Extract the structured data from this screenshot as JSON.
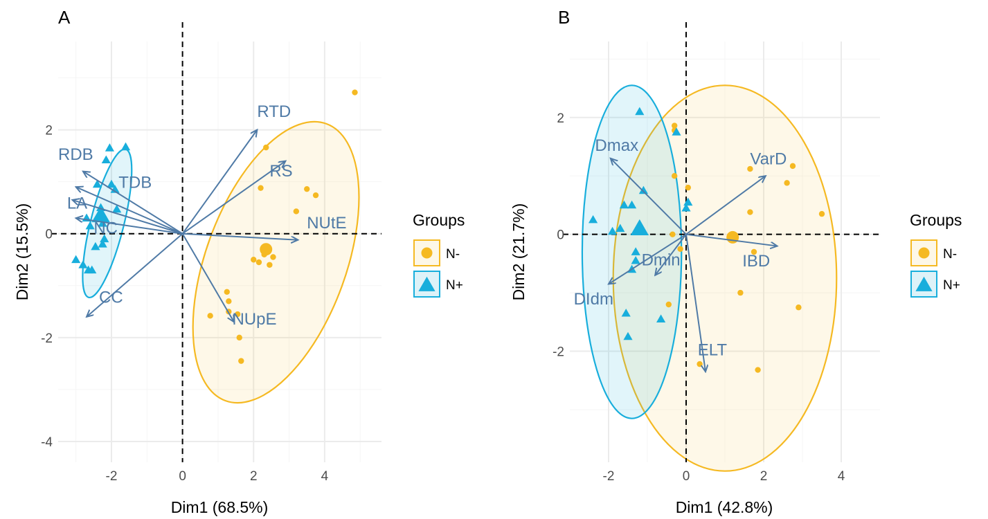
{
  "colors": {
    "n_minus": "#F5B922",
    "n_minus_fill": "#FDF7E7",
    "n_plus": "#18AEDC",
    "n_plus_fill": "#DDF2F8",
    "arrow": "#4F7AA6",
    "grid_major": "#EBEBEB",
    "grid_minor": "#F5F5F5"
  },
  "chart_data": [
    {
      "type": "scatter",
      "panel_label": "A",
      "xlabel": "Dim1 (68.5%)",
      "ylabel": "Dim2 (15.5%)",
      "xlim": [
        -3.5,
        5.6
      ],
      "ylim": [
        -4.4,
        3.7
      ],
      "xticks": [
        -2,
        0,
        2,
        4
      ],
      "yticks": [
        -4,
        -2,
        0,
        2
      ],
      "grid": true,
      "legend": {
        "title": "Groups",
        "position": "right",
        "entries": [
          "N-",
          "N+"
        ]
      },
      "series": [
        {
          "name": "N-",
          "marker": "circle",
          "points": [
            [
              4.85,
              2.72
            ],
            [
              2.35,
              1.66
            ],
            [
              2.2,
              0.88
            ],
            [
              3.5,
              0.86
            ],
            [
              3.75,
              0.74
            ],
            [
              3.2,
              0.43
            ],
            [
              2.0,
              -0.5
            ],
            [
              2.15,
              -0.55
            ],
            [
              2.3,
              -0.4
            ],
            [
              2.45,
              -0.6
            ],
            [
              2.55,
              -0.45
            ],
            [
              1.25,
              -1.12
            ],
            [
              1.3,
              -1.3
            ],
            [
              1.3,
              -1.5
            ],
            [
              0.78,
              -1.58
            ],
            [
              1.55,
              -1.55
            ],
            [
              1.6,
              -2.0
            ],
            [
              1.65,
              -2.45
            ],
            [
              2.35,
              -0.33
            ]
          ],
          "centroid": [
            2.35,
            -0.3
          ],
          "ellipse": {
            "cx": 2.63,
            "cy": -0.55,
            "rx": 4.15,
            "ry": 1.35,
            "angle_deg": 70
          }
        },
        {
          "name": "N+",
          "marker": "triangle",
          "points": [
            [
              -2.05,
              1.65
            ],
            [
              -1.6,
              1.67
            ],
            [
              -2.15,
              1.42
            ],
            [
              -2.0,
              0.95
            ],
            [
              -2.4,
              0.95
            ],
            [
              -1.9,
              0.85
            ],
            [
              -1.85,
              0.47
            ],
            [
              -2.3,
              0.5
            ],
            [
              -2.25,
              0.2
            ],
            [
              -2.6,
              0.15
            ],
            [
              -2.7,
              0.3
            ],
            [
              -2.2,
              -0.1
            ],
            [
              -2.45,
              -0.25
            ],
            [
              -2.25,
              -0.2
            ],
            [
              -3.0,
              -0.5
            ],
            [
              -2.8,
              -0.6
            ],
            [
              -2.65,
              -0.7
            ],
            [
              -2.55,
              -0.7
            ]
          ],
          "centroid": [
            -2.3,
            0.35
          ],
          "ellipse": {
            "cx": -2.12,
            "cy": 0.2,
            "rx": 2.15,
            "ry": 0.32,
            "angle_deg": 76
          }
        }
      ],
      "variables": [
        {
          "name": "RTD",
          "x": 2.1,
          "y": 2.0,
          "label_x": 2.1,
          "label_y": 2.25
        },
        {
          "name": "RS",
          "x": 2.9,
          "y": 1.4,
          "label_x": 2.45,
          "label_y": 1.1
        },
        {
          "name": "NUtE",
          "x": 3.25,
          "y": -0.12,
          "label_x": 3.5,
          "label_y": 0.1
        },
        {
          "name": "NUpE",
          "x": 1.45,
          "y": -1.7,
          "label_x": 1.4,
          "label_y": -1.75
        },
        {
          "name": "CC",
          "x": -2.7,
          "y": -1.6,
          "label_x": -2.35,
          "label_y": -1.33
        },
        {
          "name": "NC",
          "x": -3.0,
          "y": 0.3,
          "label_x": -2.5,
          "label_y": 0.0
        },
        {
          "name": "LA",
          "x": -3.1,
          "y": 0.65,
          "label_x": -3.25,
          "label_y": 0.48
        },
        {
          "name": "TDB",
          "x": -3.0,
          "y": 0.9,
          "label_x": -1.8,
          "label_y": 0.88
        },
        {
          "name": "RDB",
          "x": -2.8,
          "y": 1.2,
          "label_x": -3.5,
          "label_y": 1.42
        }
      ]
    },
    {
      "type": "scatter",
      "panel_label": "B",
      "xlabel": "Dim1 (42.8%)",
      "ylabel": "Dim2 (21.7%)",
      "xlim": [
        -3.0,
        5.0
      ],
      "ylim": [
        -3.9,
        3.3
      ],
      "xticks": [
        -2,
        0,
        2,
        4
      ],
      "yticks": [
        -2,
        0,
        2
      ],
      "grid": true,
      "legend": {
        "title": "Groups",
        "position": "right",
        "entries": [
          "N-",
          "N+"
        ]
      },
      "series": [
        {
          "name": "N-",
          "marker": "circle",
          "points": [
            [
              -0.3,
              1.86
            ],
            [
              -0.3,
              1.78
            ],
            [
              1.65,
              1.12
            ],
            [
              2.75,
              1.17
            ],
            [
              2.6,
              0.88
            ],
            [
              -0.3,
              1.0
            ],
            [
              0.05,
              0.8
            ],
            [
              1.65,
              0.38
            ],
            [
              3.5,
              0.35
            ],
            [
              -0.35,
              0.0
            ],
            [
              1.75,
              -0.3
            ],
            [
              -0.15,
              -0.25
            ],
            [
              1.4,
              -1.0
            ],
            [
              -0.45,
              -1.2
            ],
            [
              2.9,
              -1.25
            ],
            [
              0.35,
              -2.22
            ],
            [
              1.85,
              -2.32
            ]
          ],
          "centroid": [
            1.2,
            -0.05
          ],
          "ellipse": {
            "cx": 1.0,
            "cy": -0.75,
            "rx": 2.88,
            "ry": 3.3,
            "angle_deg": 0
          }
        },
        {
          "name": "N+",
          "marker": "triangle",
          "points": [
            [
              -1.2,
              2.1
            ],
            [
              -0.25,
              1.75
            ],
            [
              -1.1,
              0.75
            ],
            [
              0.05,
              0.55
            ],
            [
              0.0,
              0.45
            ],
            [
              -1.6,
              0.5
            ],
            [
              -1.4,
              0.5
            ],
            [
              -2.4,
              0.25
            ],
            [
              -1.9,
              0.05
            ],
            [
              -1.7,
              0.1
            ],
            [
              -1.3,
              -0.3
            ],
            [
              -1.3,
              -0.45
            ],
            [
              -1.4,
              -0.6
            ],
            [
              -1.55,
              -1.35
            ],
            [
              -0.65,
              -1.45
            ],
            [
              -1.5,
              -1.75
            ]
          ],
          "centroid": [
            -1.2,
            0.1
          ],
          "ellipse": {
            "cx": -1.4,
            "cy": -0.3,
            "rx": 1.28,
            "ry": 2.85,
            "angle_deg": 0
          }
        }
      ],
      "variables": [
        {
          "name": "Dmax",
          "x": -1.95,
          "y": 1.3,
          "label_x": -2.35,
          "label_y": 1.43
        },
        {
          "name": "VarD",
          "x": 2.05,
          "y": 1.0,
          "label_x": 1.65,
          "label_y": 1.2
        },
        {
          "name": "IBD",
          "x": 2.35,
          "y": -0.2,
          "label_x": 1.45,
          "label_y": -0.55
        },
        {
          "name": "Dmin",
          "x": -0.8,
          "y": -0.7,
          "label_x": -1.15,
          "label_y": -0.53
        },
        {
          "name": "DIdm",
          "x": -2.0,
          "y": -0.85,
          "label_x": -2.9,
          "label_y": -1.2
        },
        {
          "name": "ELT",
          "x": 0.5,
          "y": -2.35,
          "label_x": 0.3,
          "label_y": -2.07
        }
      ]
    }
  ]
}
